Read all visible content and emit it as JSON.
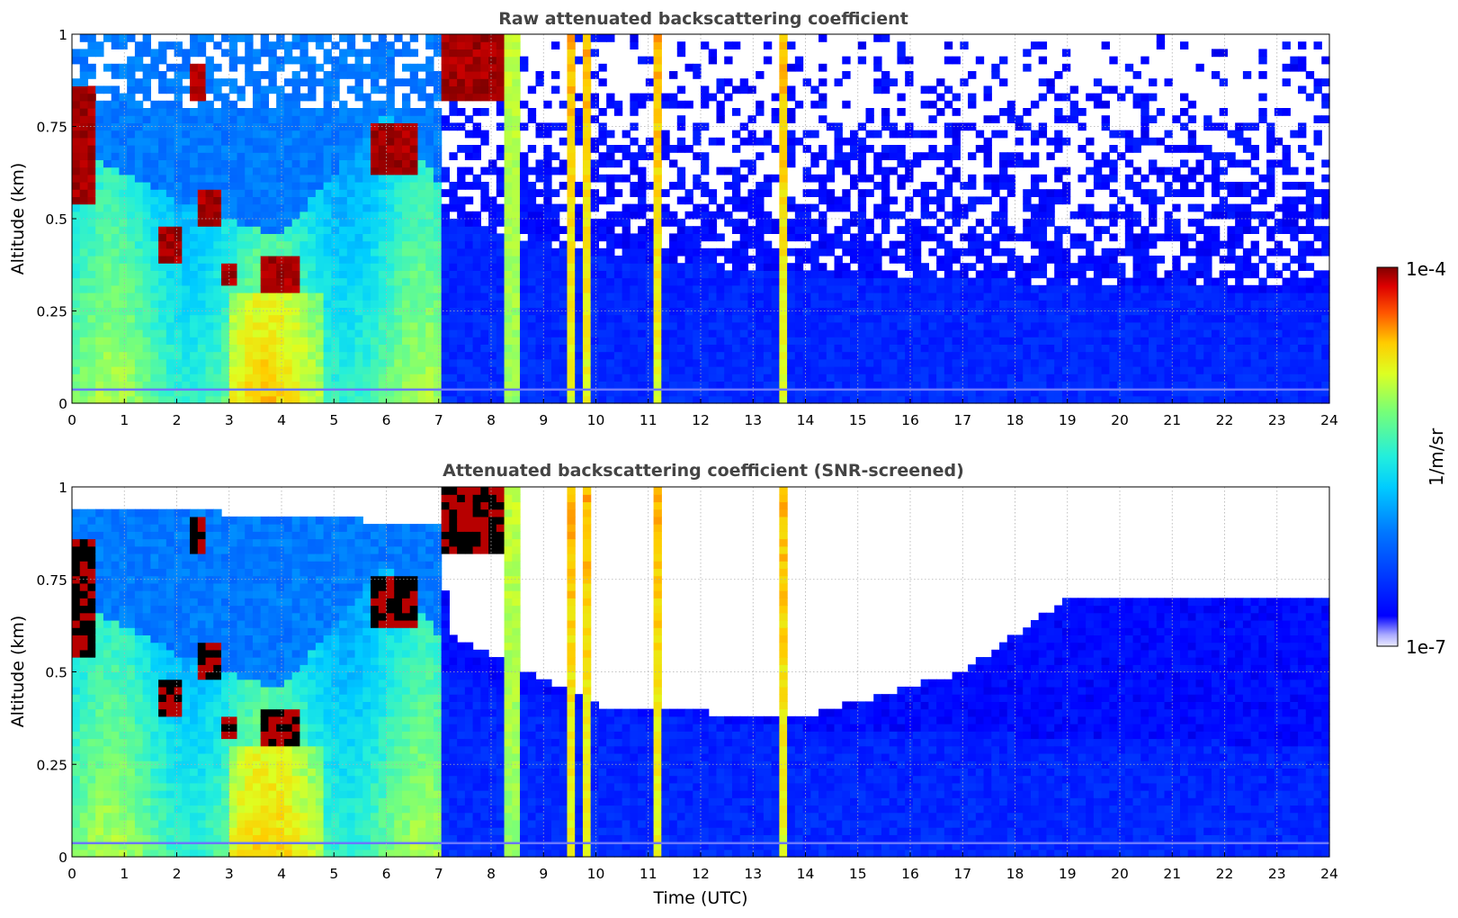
{
  "chart_data": [
    {
      "type": "heatmap",
      "id": "raw",
      "title": "Raw attenuated backscattering coefficient",
      "xlabel": "",
      "ylabel": "Altitude (km)",
      "xlim": [
        0,
        24
      ],
      "ylim": [
        0,
        1
      ],
      "xticks": [
        "0",
        "1",
        "2",
        "3",
        "4",
        "5",
        "6",
        "7",
        "8",
        "9",
        "10",
        "11",
        "12",
        "13",
        "14",
        "15",
        "16",
        "17",
        "18",
        "19",
        "20",
        "21",
        "22",
        "23",
        "24"
      ],
      "yticks": [
        "0",
        "0.25",
        "0.5",
        "0.75",
        "1"
      ],
      "grid": true,
      "z_scale": "log",
      "description_hints": {
        "aerosol_layer_top_km_by_hour": [
          [
            0,
            0.6
          ],
          [
            2,
            0.45
          ],
          [
            4,
            0.35
          ],
          [
            6,
            0.7
          ],
          [
            7,
            0.5
          ],
          [
            10,
            0.4
          ],
          [
            14,
            0.35
          ],
          [
            24,
            0.3
          ]
        ],
        "cloud_patches": [
          {
            "t": [
              0.0,
              0.5
            ],
            "z": [
              0.55,
              0.85
            ],
            "level": "high"
          },
          {
            "t": [
              2.2,
              2.5
            ],
            "z": [
              0.82,
              0.92
            ],
            "level": "high"
          },
          {
            "t": [
              2.4,
              2.8
            ],
            "z": [
              0.49,
              0.58
            ],
            "level": "high"
          },
          {
            "t": [
              1.7,
              2.1
            ],
            "z": [
              0.39,
              0.47
            ],
            "level": "high"
          },
          {
            "t": [
              2.9,
              3.2
            ],
            "z": [
              0.32,
              0.38
            ],
            "level": "high"
          },
          {
            "t": [
              3.6,
              4.4
            ],
            "z": [
              0.3,
              0.4
            ],
            "level": "high"
          },
          {
            "t": [
              5.7,
              6.6
            ],
            "z": [
              0.62,
              0.75
            ],
            "level": "high"
          },
          {
            "t": [
              7.0,
              8.2
            ],
            "z": [
              0.82,
              1.0
            ],
            "level": "high"
          }
        ],
        "vertical_plumes_hour": [
          8.4,
          9.5,
          9.8,
          11.2,
          13.6
        ]
      }
    },
    {
      "type": "heatmap",
      "id": "screened",
      "title": "Attenuated backscattering coefficient (SNR-screened)",
      "xlabel": "Time (UTC)",
      "ylabel": "Altitude (km)",
      "xlim": [
        0,
        24
      ],
      "ylim": [
        0,
        1
      ],
      "xticks": [
        "0",
        "1",
        "2",
        "3",
        "4",
        "5",
        "6",
        "7",
        "8",
        "9",
        "10",
        "11",
        "12",
        "13",
        "14",
        "15",
        "16",
        "17",
        "18",
        "19",
        "20",
        "21",
        "22",
        "23",
        "24"
      ],
      "yticks": [
        "0",
        "0.25",
        "0.5",
        "0.75",
        "1"
      ],
      "grid": true,
      "z_scale": "log",
      "screened_top_km_by_hour": [
        [
          0,
          0.95
        ],
        [
          7,
          0.9
        ],
        [
          7.2,
          0.6
        ],
        [
          10.2,
          0.4
        ],
        [
          14,
          0.38
        ],
        [
          17,
          0.5
        ],
        [
          19,
          0.7
        ],
        [
          24,
          0.7
        ]
      ]
    }
  ],
  "colorbar": {
    "label": "1/m/sr",
    "max_label": "1e-4",
    "min_label": "1e-7",
    "colormap": "jet",
    "low_end_color": "#eeeeff"
  },
  "colors": {
    "title": "#444444",
    "grid": "#b0b0b0",
    "axis": "#000000"
  }
}
